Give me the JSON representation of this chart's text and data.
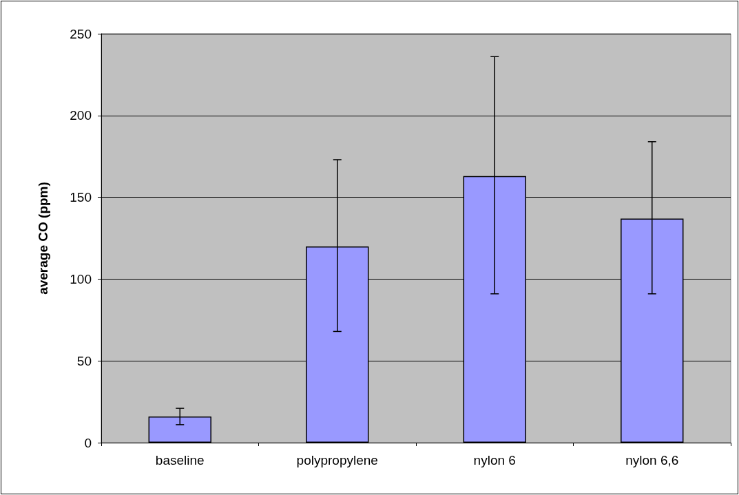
{
  "chart_data": {
    "type": "bar",
    "ylabel": "average CO (ppm)",
    "categories": [
      "baseline",
      "polypropylene",
      "nylon 6",
      "nylon 6,6"
    ],
    "values": [
      16,
      120,
      163,
      137
    ],
    "errors": [
      [
        11,
        21
      ],
      [
        68,
        173
      ],
      [
        91,
        236
      ],
      [
        91,
        184
      ]
    ],
    "color": "#9999ff",
    "ylim": [
      0,
      250
    ],
    "yticks": [
      0,
      50,
      100,
      150,
      200,
      250
    ],
    "grid": "y"
  }
}
